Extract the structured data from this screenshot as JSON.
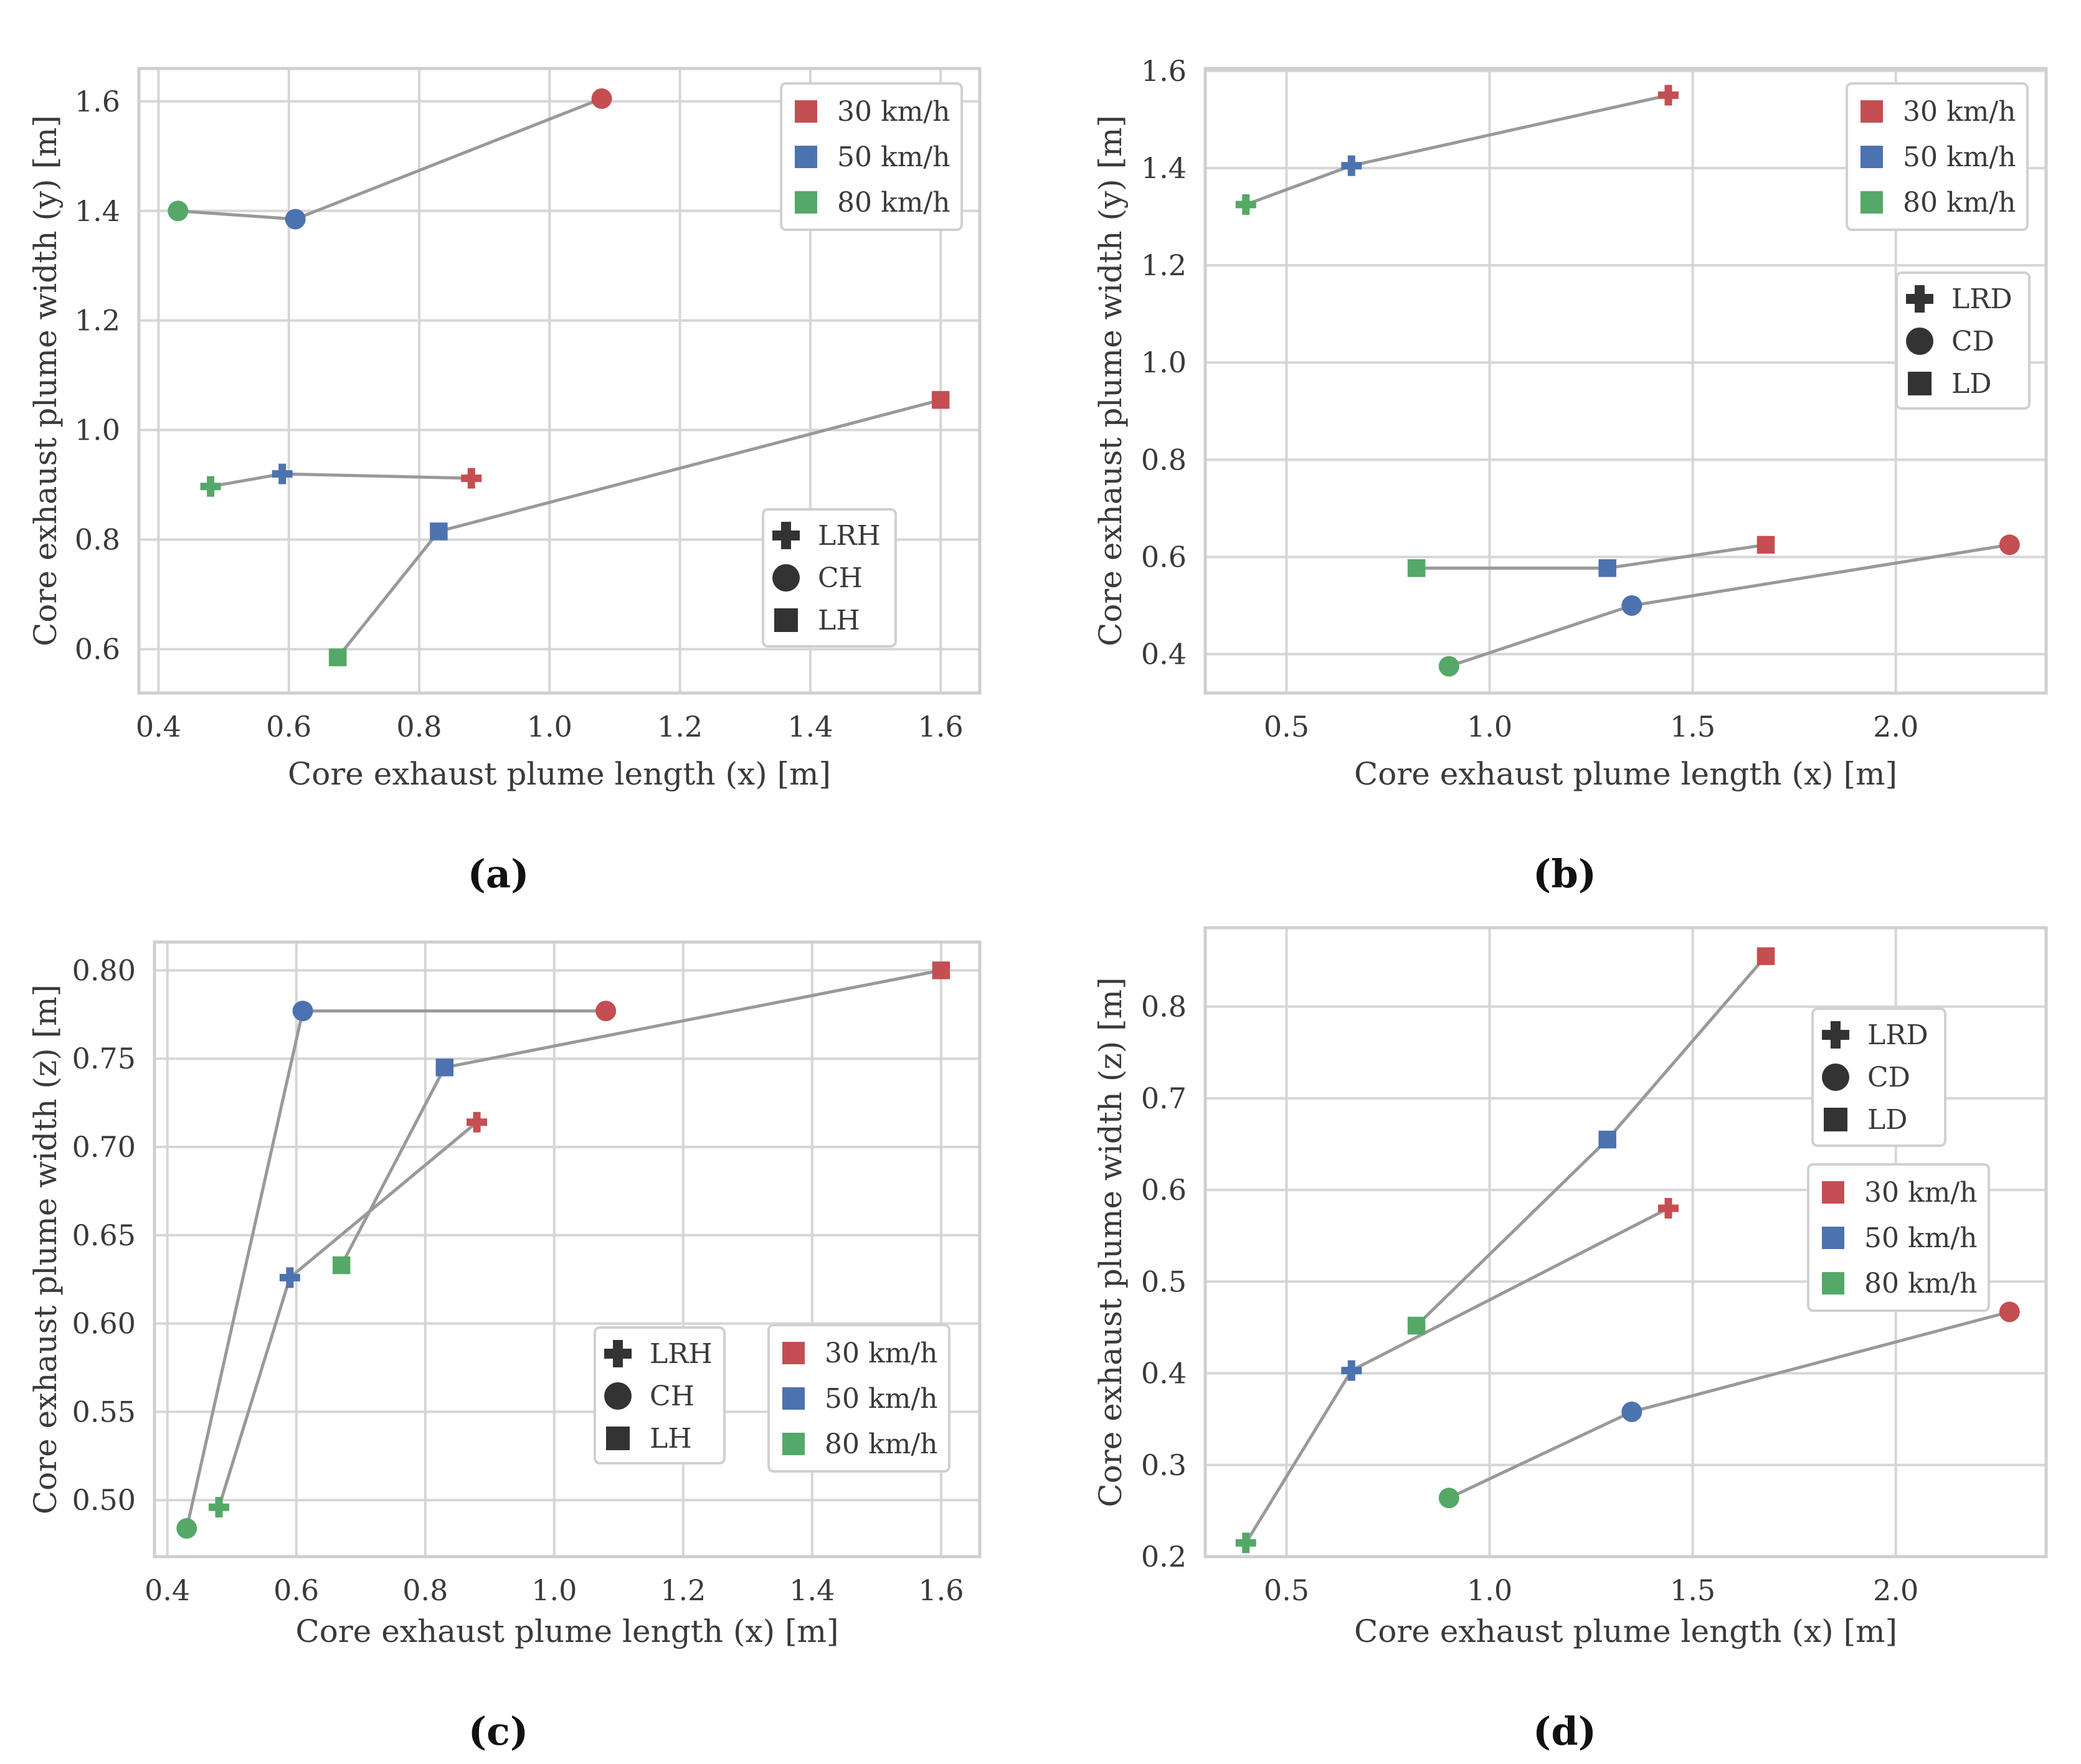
{
  "figure": {
    "captions": [
      "(a)",
      "(b)",
      "(c)",
      "(d)"
    ]
  },
  "colors": {
    "30 km/h": "#c44e52",
    "50 km/h": "#4c72b0",
    "80 km/h": "#55a868",
    "connector": "#999999",
    "legend_shape": "#333333"
  },
  "chart_data": [
    {
      "id": "a",
      "type": "scatter",
      "caption": "(a)",
      "xlabel": "Core exhaust plume length (x) [m]",
      "ylabel": "Core exhaust plume width (y) [m]",
      "xlim": [
        0.37,
        1.66
      ],
      "ylim": [
        0.52,
        1.66
      ],
      "xticks": [
        0.4,
        0.6,
        0.8,
        1.0,
        1.2,
        1.4,
        1.6
      ],
      "xtick_labels": [
        "0.4",
        "0.6",
        "0.8",
        "1.0",
        "1.2",
        "1.4",
        "1.6"
      ],
      "yticks": [
        0.6,
        0.8,
        1.0,
        1.2,
        1.4,
        1.6
      ],
      "ytick_labels": [
        "0.6",
        "0.8",
        "1.0",
        "1.2",
        "1.4",
        "1.6"
      ],
      "speed_legend": {
        "position": "top-right",
        "entries": [
          "30 km/h",
          "50 km/h",
          "80 km/h"
        ]
      },
      "marker_legend": {
        "position": "lower-right",
        "entries": [
          {
            "label": "LRH",
            "marker": "plus"
          },
          {
            "label": "CH",
            "marker": "circle"
          },
          {
            "label": "LH",
            "marker": "square"
          }
        ]
      },
      "series": [
        {
          "name": "CH",
          "marker": "circle",
          "points": [
            {
              "x": 0.43,
              "y": 1.4,
              "speed": "80 km/h"
            },
            {
              "x": 0.61,
              "y": 1.385,
              "speed": "50 km/h"
            },
            {
              "x": 1.08,
              "y": 1.605,
              "speed": "30 km/h"
            }
          ]
        },
        {
          "name": "LRH",
          "marker": "plus",
          "points": [
            {
              "x": 0.48,
              "y": 0.897,
              "speed": "80 km/h"
            },
            {
              "x": 0.59,
              "y": 0.92,
              "speed": "50 km/h"
            },
            {
              "x": 0.88,
              "y": 0.912,
              "speed": "30 km/h"
            }
          ]
        },
        {
          "name": "LH",
          "marker": "square",
          "points": [
            {
              "x": 0.675,
              "y": 0.585,
              "speed": "80 km/h"
            },
            {
              "x": 0.83,
              "y": 0.815,
              "speed": "50 km/h"
            },
            {
              "x": 1.6,
              "y": 1.055,
              "speed": "30 km/h"
            }
          ]
        }
      ]
    },
    {
      "id": "b",
      "type": "scatter",
      "caption": "(b)",
      "xlabel": "Core exhaust plume length (x) [m]",
      "ylabel": "Core exhaust plume width (y) [m]",
      "xlim": [
        0.3,
        2.37
      ],
      "ylim": [
        0.32,
        1.605
      ],
      "xticks": [
        0.5,
        1.0,
        1.5,
        2.0
      ],
      "xtick_labels": [
        "0.5",
        "1.0",
        "1.5",
        "2.0"
      ],
      "yticks": [
        0.4,
        0.6,
        0.8,
        1.0,
        1.2,
        1.4,
        1.6
      ],
      "ytick_labels": [
        "0.4",
        "0.6",
        "0.8",
        "1.0",
        "1.2",
        "1.4",
        "1.6"
      ],
      "speed_legend": {
        "position": "top-right",
        "entries": [
          "30 km/h",
          "50 km/h",
          "80 km/h"
        ]
      },
      "marker_legend": {
        "position": "upper-right",
        "entries": [
          {
            "label": "LRD",
            "marker": "plus"
          },
          {
            "label": "CD",
            "marker": "circle"
          },
          {
            "label": "LD",
            "marker": "square"
          }
        ]
      },
      "series": [
        {
          "name": "LRD",
          "marker": "plus",
          "points": [
            {
              "x": 0.4,
              "y": 1.325,
              "speed": "80 km/h"
            },
            {
              "x": 0.66,
              "y": 1.405,
              "speed": "50 km/h"
            },
            {
              "x": 1.44,
              "y": 1.55,
              "speed": "30 km/h"
            }
          ]
        },
        {
          "name": "LD",
          "marker": "square",
          "points": [
            {
              "x": 0.82,
              "y": 0.577,
              "speed": "80 km/h"
            },
            {
              "x": 1.29,
              "y": 0.577,
              "speed": "50 km/h"
            },
            {
              "x": 1.68,
              "y": 0.625,
              "speed": "30 km/h"
            }
          ]
        },
        {
          "name": "CD",
          "marker": "circle",
          "points": [
            {
              "x": 0.9,
              "y": 0.375,
              "speed": "80 km/h"
            },
            {
              "x": 1.35,
              "y": 0.5,
              "speed": "50 km/h"
            },
            {
              "x": 2.28,
              "y": 0.625,
              "speed": "30 km/h"
            }
          ]
        }
      ]
    },
    {
      "id": "c",
      "type": "scatter",
      "caption": "(c)",
      "xlabel": "Core exhaust plume length (x) [m]",
      "ylabel": "Core exhaust plume width (z) [m]",
      "xlim": [
        0.38,
        1.66
      ],
      "ylim": [
        0.468,
        0.816
      ],
      "xticks": [
        0.4,
        0.6,
        0.8,
        1.0,
        1.2,
        1.4,
        1.6
      ],
      "xtick_labels": [
        "0.4",
        "0.6",
        "0.8",
        "1.0",
        "1.2",
        "1.4",
        "1.6"
      ],
      "yticks": [
        0.5,
        0.55,
        0.6,
        0.65,
        0.7,
        0.75,
        0.8
      ],
      "ytick_labels": [
        "0.50",
        "0.55",
        "0.60",
        "0.65",
        "0.70",
        "0.75",
        "0.80"
      ],
      "speed_legend": {
        "position": "lower-right",
        "entries": [
          "30 km/h",
          "50 km/h",
          "80 km/h"
        ]
      },
      "marker_legend": {
        "position": "lower-center-right",
        "entries": [
          {
            "label": "LRH",
            "marker": "plus"
          },
          {
            "label": "CH",
            "marker": "circle"
          },
          {
            "label": "LH",
            "marker": "square"
          }
        ]
      },
      "series": [
        {
          "name": "CH",
          "marker": "circle",
          "points": [
            {
              "x": 0.43,
              "y": 0.484,
              "speed": "80 km/h"
            },
            {
              "x": 0.61,
              "y": 0.777,
              "speed": "50 km/h"
            },
            {
              "x": 1.08,
              "y": 0.777,
              "speed": "30 km/h"
            }
          ]
        },
        {
          "name": "LRH",
          "marker": "plus",
          "points": [
            {
              "x": 0.48,
              "y": 0.496,
              "speed": "80 km/h"
            },
            {
              "x": 0.59,
              "y": 0.626,
              "speed": "50 km/h"
            },
            {
              "x": 0.88,
              "y": 0.714,
              "speed": "30 km/h"
            }
          ]
        },
        {
          "name": "LH",
          "marker": "square",
          "points": [
            {
              "x": 0.67,
              "y": 0.633,
              "speed": "80 km/h"
            },
            {
              "x": 0.83,
              "y": 0.745,
              "speed": "50 km/h"
            },
            {
              "x": 1.6,
              "y": 0.8,
              "speed": "30 km/h"
            }
          ]
        }
      ]
    },
    {
      "id": "d",
      "type": "scatter",
      "caption": "(d)",
      "xlabel": "Core exhaust plume length (x) [m]",
      "ylabel": "Core exhaust plume width (z) [m]",
      "xlim": [
        0.3,
        2.37
      ],
      "ylim": [
        0.2,
        0.886
      ],
      "xticks": [
        0.5,
        1.0,
        1.5,
        2.0
      ],
      "xtick_labels": [
        "0.5",
        "1.0",
        "1.5",
        "2.0"
      ],
      "yticks": [
        0.2,
        0.3,
        0.4,
        0.5,
        0.6,
        0.7,
        0.8
      ],
      "ytick_labels": [
        "0.2",
        "0.3",
        "0.4",
        "0.5",
        "0.6",
        "0.7",
        "0.8"
      ],
      "speed_legend": {
        "position": "center-right",
        "entries": [
          "30 km/h",
          "50 km/h",
          "80 km/h"
        ]
      },
      "marker_legend": {
        "position": "upper-right",
        "entries": [
          {
            "label": "LRD",
            "marker": "plus"
          },
          {
            "label": "CD",
            "marker": "circle"
          },
          {
            "label": "LD",
            "marker": "square"
          }
        ]
      },
      "series": [
        {
          "name": "LRD",
          "marker": "plus",
          "points": [
            {
              "x": 0.4,
              "y": 0.215,
              "speed": "80 km/h"
            },
            {
              "x": 0.66,
              "y": 0.403,
              "speed": "50 km/h"
            },
            {
              "x": 1.44,
              "y": 0.58,
              "speed": "30 km/h"
            }
          ]
        },
        {
          "name": "LD",
          "marker": "square",
          "points": [
            {
              "x": 0.82,
              "y": 0.452,
              "speed": "80 km/h"
            },
            {
              "x": 1.29,
              "y": 0.655,
              "speed": "50 km/h"
            },
            {
              "x": 1.68,
              "y": 0.855,
              "speed": "30 km/h"
            }
          ]
        },
        {
          "name": "CD",
          "marker": "circle",
          "points": [
            {
              "x": 0.9,
              "y": 0.264,
              "speed": "80 km/h"
            },
            {
              "x": 1.35,
              "y": 0.358,
              "speed": "50 km/h"
            },
            {
              "x": 2.28,
              "y": 0.467,
              "speed": "30 km/h"
            }
          ]
        }
      ]
    }
  ]
}
